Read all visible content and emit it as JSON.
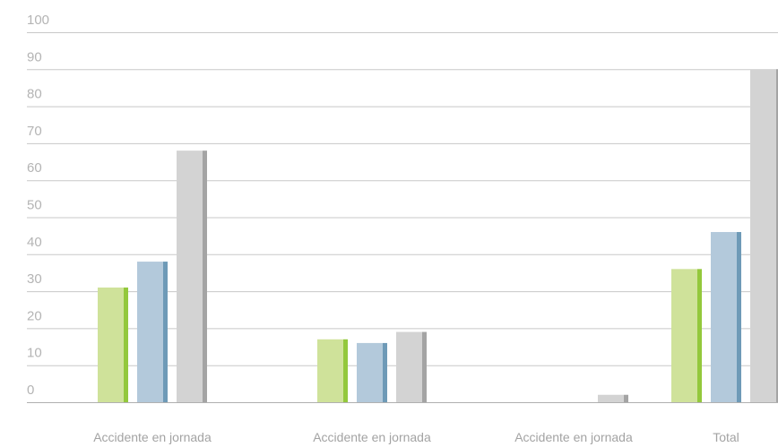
{
  "chart_data": {
    "type": "bar",
    "title": "",
    "xlabel": "",
    "ylabel": "",
    "ylim": [
      0,
      100
    ],
    "yticks": [
      0,
      10,
      20,
      30,
      40,
      50,
      60,
      70,
      80,
      90,
      100
    ],
    "grid": true,
    "legend": "none",
    "categories": [
      "Accidente en jornada",
      "Accidente en jornada",
      "Accidente en jornada",
      "Total"
    ],
    "series": [
      {
        "values": [
          31,
          17,
          0,
          36
        ],
        "color": "#cfe29a",
        "edge_color": "#93c83c"
      },
      {
        "values": [
          38,
          16,
          0,
          46
        ],
        "color": "#b3c9db",
        "edge_color": "#6e9ab7"
      },
      {
        "values": [
          68,
          19,
          2,
          90
        ],
        "color": "#d3d3d3",
        "edge_color": "#a4a4a4"
      }
    ]
  }
}
